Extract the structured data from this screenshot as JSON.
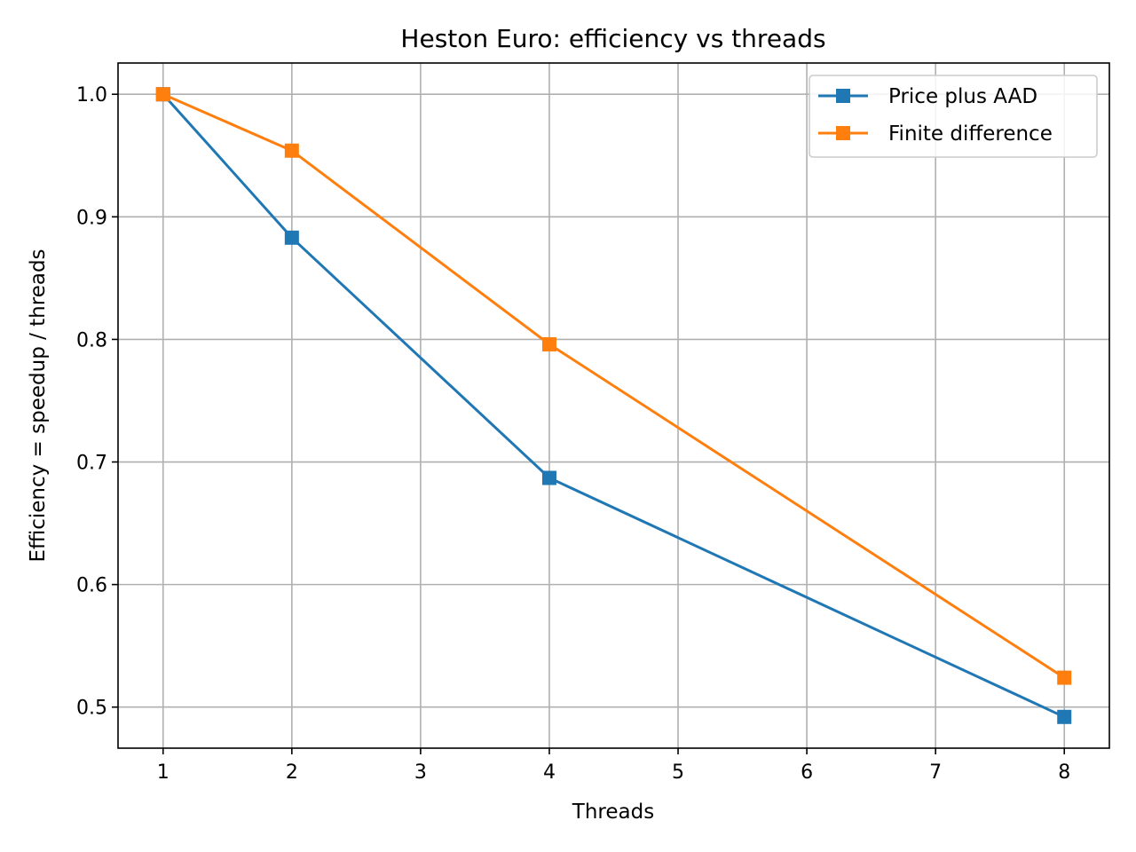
{
  "chart_data": {
    "type": "line",
    "title": "Heston Euro: efficiency vs threads",
    "xlabel": "Threads",
    "ylabel": "Efficiency = speedup / threads",
    "xlim": [
      0.65,
      8.35
    ],
    "ylim": [
      0.4665,
      1.0255
    ],
    "xticks": [
      1,
      2,
      3,
      4,
      5,
      6,
      7,
      8
    ],
    "yticks": [
      0.5,
      0.6,
      0.7,
      0.8,
      0.9,
      1.0
    ],
    "ytick_labels": [
      "0.5",
      "0.6",
      "0.7",
      "0.8",
      "0.9",
      "1.0"
    ],
    "grid": true,
    "legend_position": "top-right",
    "series": [
      {
        "name": "Price plus AAD",
        "color": "#1f77b4",
        "marker": "square",
        "x": [
          1,
          2,
          4,
          8
        ],
        "y": [
          1.0,
          0.883,
          0.687,
          0.492
        ]
      },
      {
        "name": "Finite difference",
        "color": "#ff7f0e",
        "marker": "square",
        "x": [
          1,
          2,
          4,
          8
        ],
        "y": [
          1.0,
          0.954,
          0.796,
          0.524
        ]
      }
    ]
  }
}
